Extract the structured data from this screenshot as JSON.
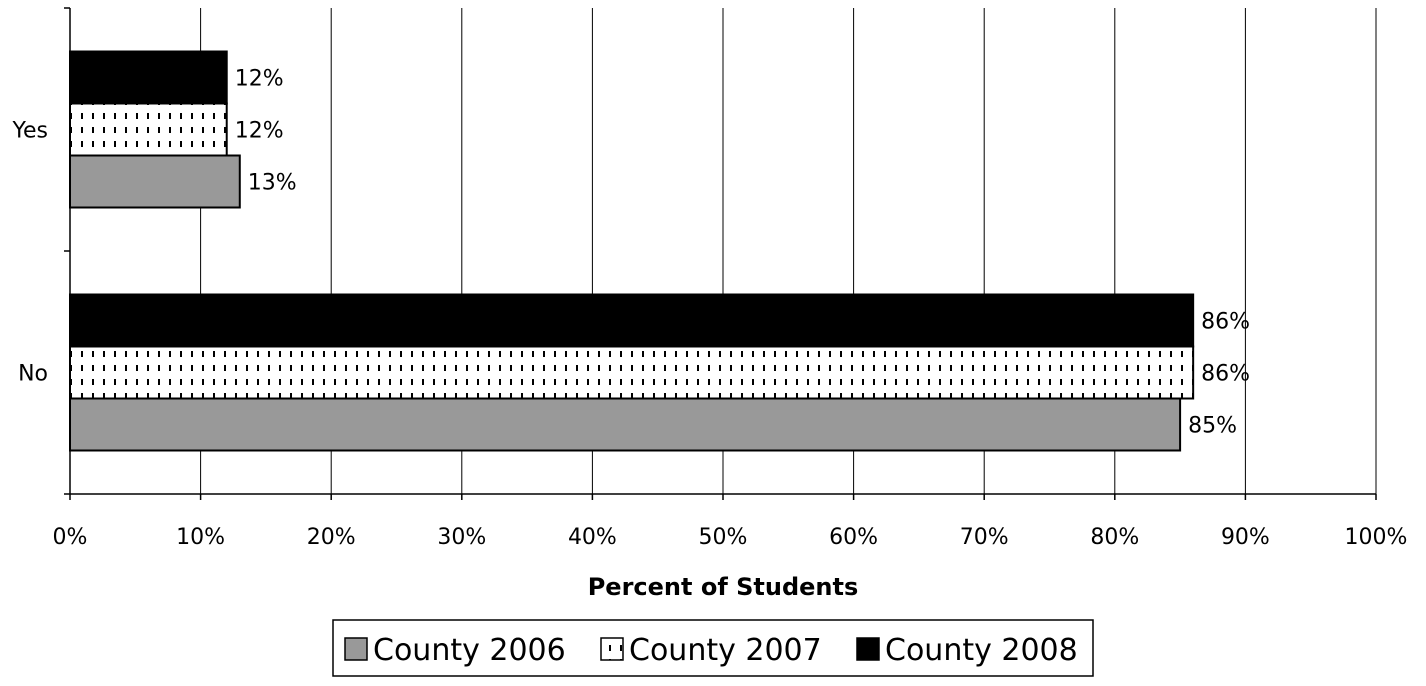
{
  "chart_data": {
    "type": "bar",
    "orientation": "horizontal",
    "categories": [
      "Yes",
      "No"
    ],
    "series": [
      {
        "name": "County 2006",
        "values": [
          13,
          85
        ],
        "labels": [
          "13%",
          "85%"
        ],
        "color": "#999999",
        "pattern": "solid"
      },
      {
        "name": "County 2007",
        "values": [
          12,
          86
        ],
        "labels": [
          "12%",
          "86%"
        ],
        "color": "#ffffff",
        "pattern": "dashed-vertical"
      },
      {
        "name": "County 2008",
        "values": [
          12,
          86
        ],
        "labels": [
          "12%",
          "86%"
        ],
        "color": "#000000",
        "pattern": "solid"
      }
    ],
    "xlabel": "Percent of Students",
    "xlim": [
      0,
      100
    ],
    "xticks": [
      "0%",
      "10%",
      "20%",
      "30%",
      "40%",
      "50%",
      "60%",
      "70%",
      "80%",
      "90%",
      "100%"
    ],
    "grid": "vertical",
    "legend_position": "bottom"
  }
}
